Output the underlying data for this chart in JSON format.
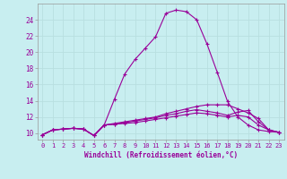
{
  "xlabel": "Windchill (Refroidissement éolien,°C)",
  "background_color": "#c8eef0",
  "grid_color": "#aadddd",
  "line_color": "#990099",
  "x_ticks": [
    0,
    1,
    2,
    3,
    4,
    5,
    6,
    7,
    8,
    9,
    10,
    11,
    12,
    13,
    14,
    15,
    16,
    17,
    18,
    19,
    20,
    21,
    22,
    23
  ],
  "y_ticks": [
    10,
    12,
    14,
    16,
    18,
    20,
    22,
    24
  ],
  "ylim": [
    9.2,
    26.0
  ],
  "xlim": [
    -0.5,
    23.5
  ],
  "series": [
    [
      9.8,
      10.4,
      10.5,
      10.6,
      10.5,
      9.7,
      11.0,
      14.2,
      17.3,
      19.1,
      20.5,
      21.9,
      24.8,
      25.2,
      25.0,
      24.0,
      21.0,
      17.5,
      13.9,
      12.0,
      11.0,
      10.4,
      10.2,
      10.1
    ],
    [
      9.8,
      10.4,
      10.5,
      10.6,
      10.5,
      9.7,
      11.0,
      11.2,
      11.4,
      11.6,
      11.8,
      12.0,
      12.4,
      12.7,
      13.0,
      13.3,
      13.5,
      13.5,
      13.5,
      13.0,
      12.5,
      11.8,
      10.4,
      10.1
    ],
    [
      9.8,
      10.4,
      10.5,
      10.6,
      10.5,
      9.7,
      11.0,
      11.1,
      11.3,
      11.5,
      11.7,
      11.9,
      12.2,
      12.4,
      12.7,
      12.9,
      12.7,
      12.5,
      12.2,
      12.6,
      12.8,
      11.4,
      10.4,
      10.1
    ],
    [
      9.8,
      10.4,
      10.5,
      10.6,
      10.5,
      9.7,
      11.0,
      11.1,
      11.2,
      11.3,
      11.5,
      11.7,
      11.9,
      12.1,
      12.3,
      12.5,
      12.4,
      12.2,
      12.0,
      12.2,
      12.0,
      11.0,
      10.4,
      10.1
    ]
  ]
}
